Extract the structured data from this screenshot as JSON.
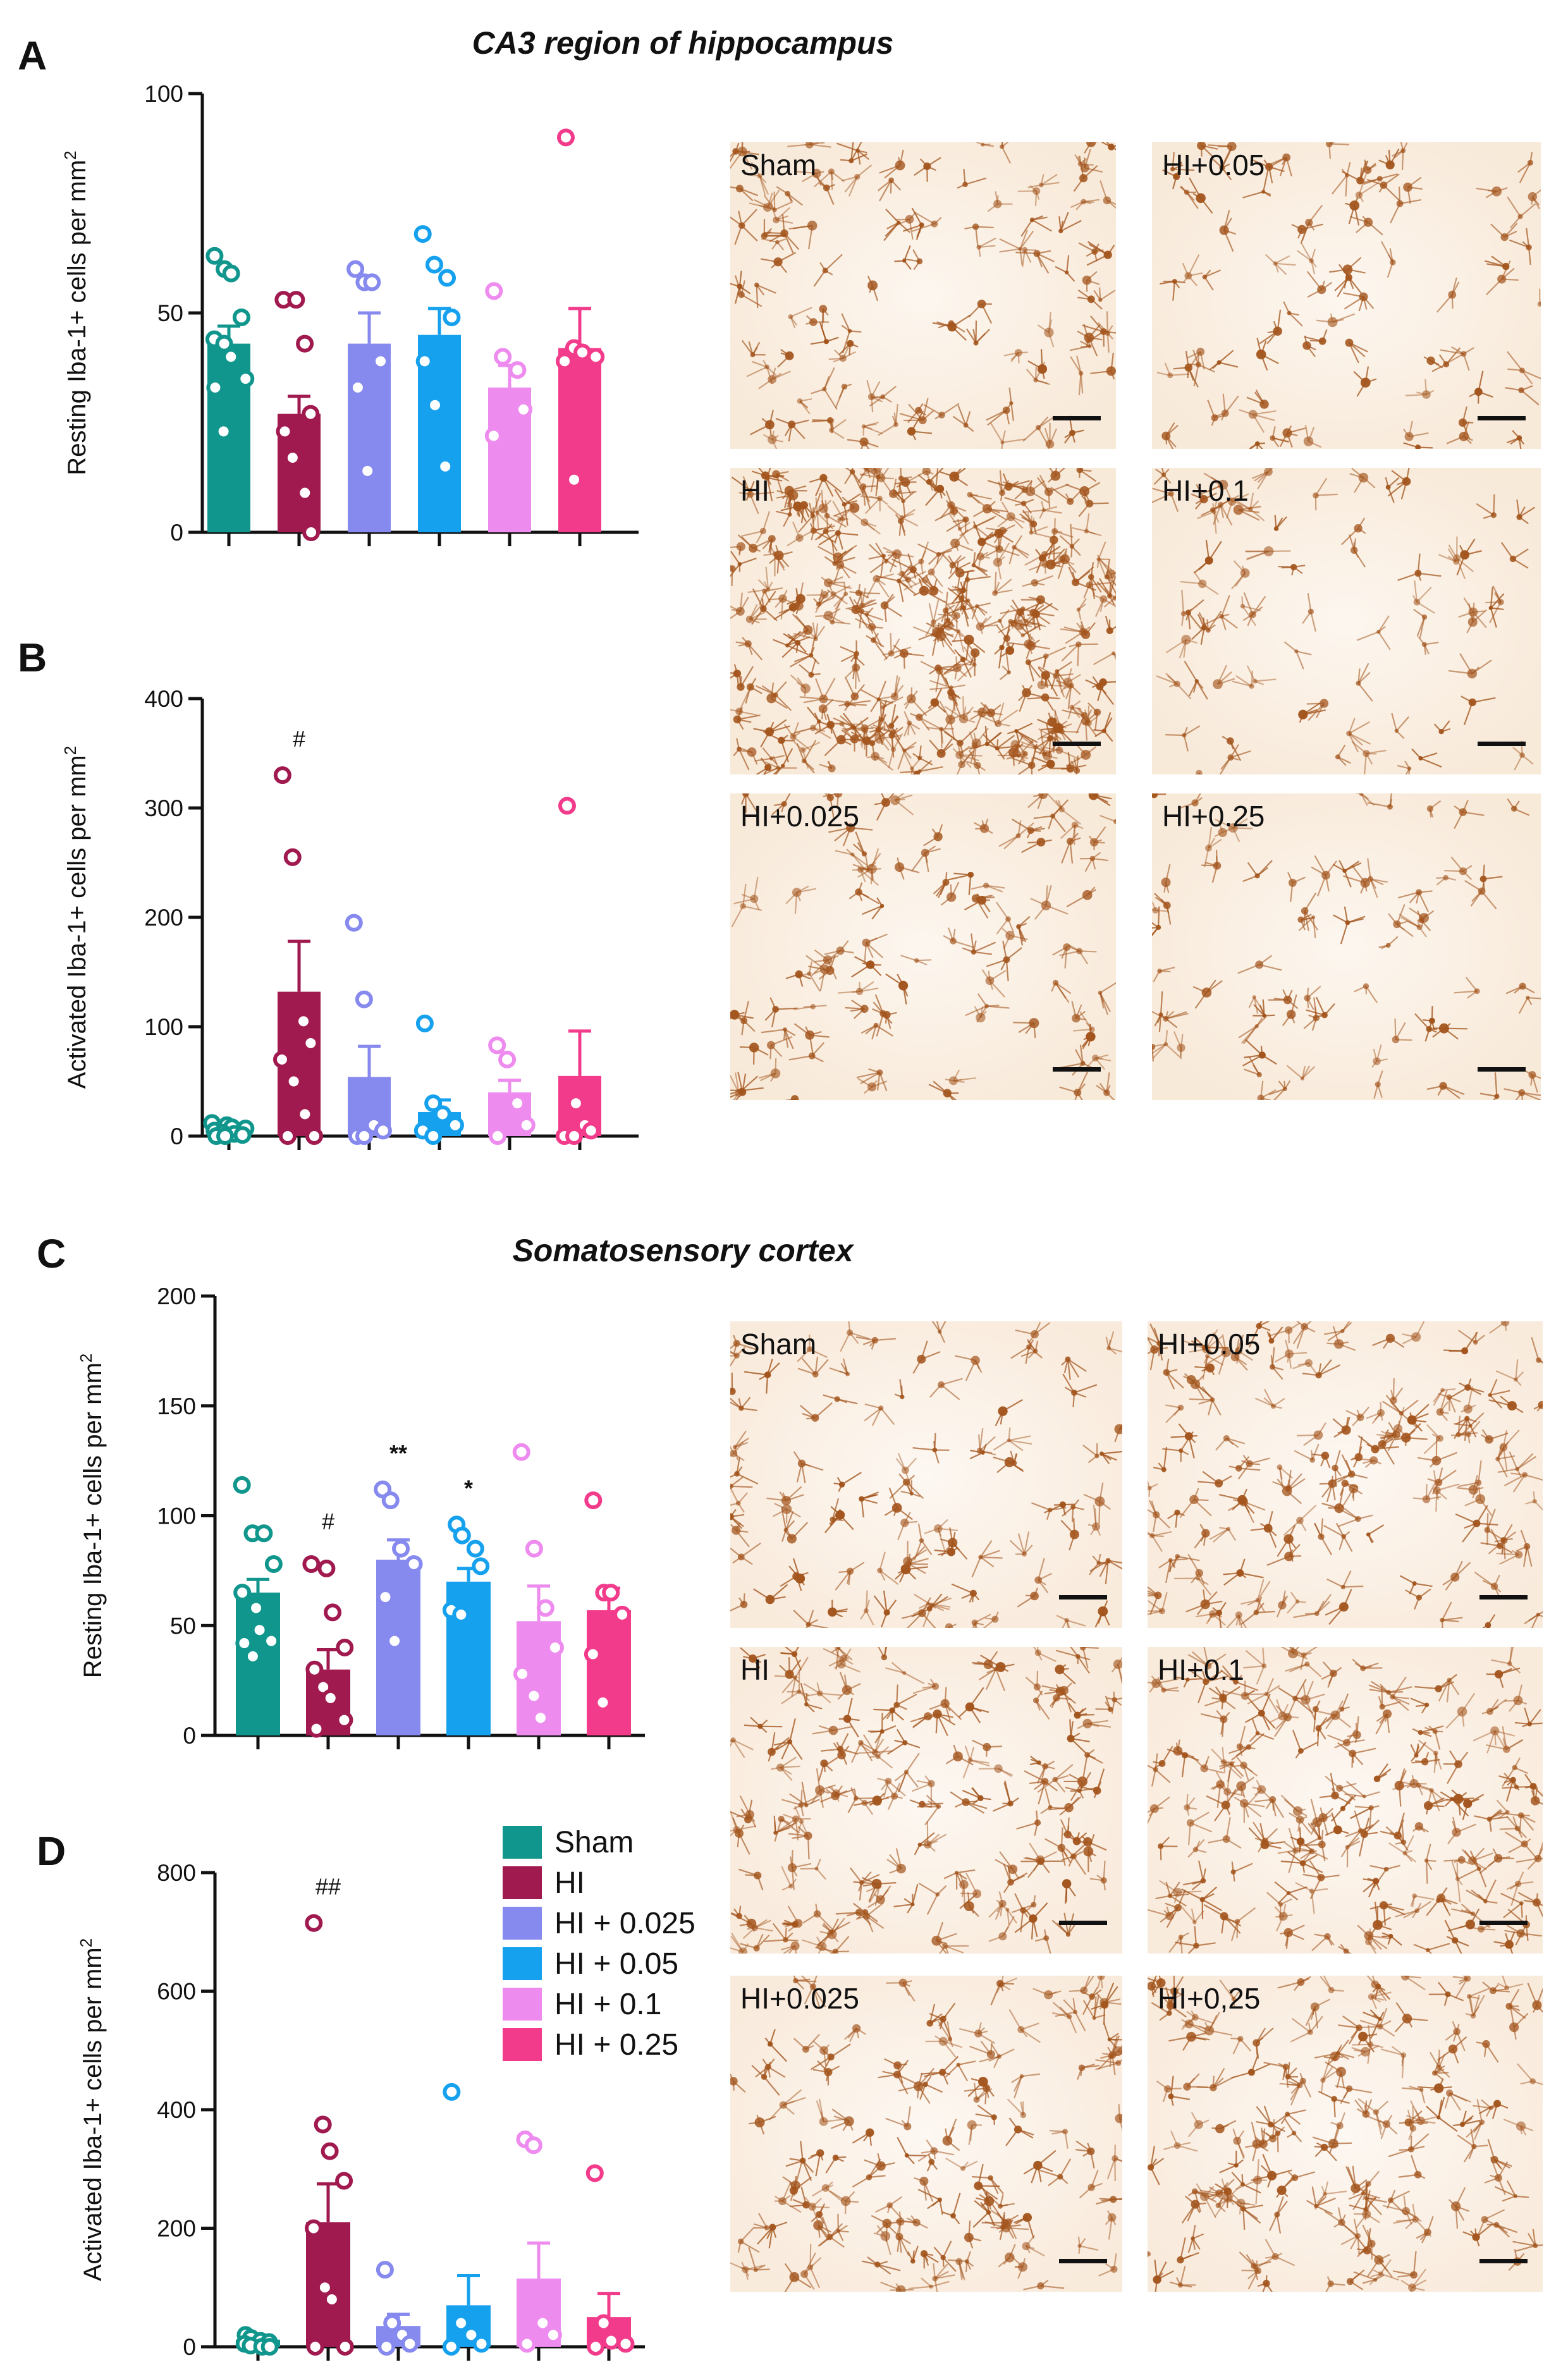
{
  "colors": {
    "Sham": "#10968c",
    "HI": "#a01a4f",
    "HI + 0.025": "#8689ee",
    "HI + 0.05": "#16a1ee",
    "HI + 0.1": "#ee8bef",
    "HI + 0.25": "#f23b8b",
    "bg_CA3": "#fbf1e5",
    "bg_cortex": "#fcf3ea",
    "stain": "#a3551d"
  },
  "sections": {
    "hippocampus": "CA3 region of hippocampus",
    "cortex": "Somatosensory cortex"
  },
  "legend": [
    "Sham",
    "HI",
    "HI + 0.025",
    "HI + 0.05",
    "HI + 0.1",
    "HI + 0.25"
  ],
  "micrographs": {
    "A": [
      "Sham",
      "HI+0.05",
      "HI",
      "HI+0.1",
      "HI+0.025",
      "HI+0.25"
    ],
    "C": [
      "Sham",
      "HI+0.05",
      "HI",
      "HI+0.1",
      "HI+0.025",
      "HI+0,25"
    ]
  },
  "chart_data": [
    {
      "panel": "A",
      "type": "bar",
      "ylabel": "Resting Iba-1+ cells per mm2",
      "ylim": [
        0,
        100
      ],
      "yticks": [
        0,
        50,
        100
      ],
      "categories": [
        "Sham",
        "HI",
        "HI + 0.025",
        "HI + 0.05",
        "HI + 0.1",
        "HI + 0.25"
      ],
      "values": [
        43,
        27,
        43,
        45,
        33,
        42
      ],
      "sem": [
        4,
        4,
        7,
        6,
        5,
        9
      ],
      "points": [
        [
          63,
          60,
          59,
          49,
          44,
          43,
          40,
          35,
          33,
          23
        ],
        [
          53,
          53,
          43,
          27,
          23,
          17,
          9,
          0
        ],
        [
          60,
          57,
          57,
          39,
          33,
          14
        ],
        [
          68,
          61,
          58,
          49,
          39,
          29,
          15
        ],
        [
          55,
          40,
          37,
          28,
          22
        ],
        [
          90,
          42,
          41,
          40,
          39,
          12
        ]
      ],
      "annotations": [
        "",
        "",
        "",
        "",
        "",
        ""
      ]
    },
    {
      "panel": "B",
      "type": "bar",
      "ylabel": "Activated Iba-1+ cells per mm2",
      "ylim": [
        0,
        400
      ],
      "yticks": [
        0,
        100,
        200,
        300,
        400
      ],
      "categories": [
        "Sham",
        "HI",
        "HI + 0.025",
        "HI + 0.05",
        "HI + 0.1",
        "HI + 0.25"
      ],
      "values": [
        7,
        132,
        54,
        22,
        40,
        55
      ],
      "sem": [
        2,
        46,
        28,
        11,
        11,
        41
      ],
      "points": [
        [
          12,
          10,
          8,
          7,
          5,
          3,
          2,
          1,
          0,
          0
        ],
        [
          330,
          255,
          105,
          85,
          70,
          50,
          20,
          0,
          0
        ],
        [
          195,
          125,
          10,
          5,
          0,
          0
        ],
        [
          103,
          30,
          20,
          10,
          5,
          0
        ],
        [
          83,
          70,
          30,
          10,
          0
        ],
        [
          302,
          30,
          10,
          5,
          0,
          0
        ]
      ],
      "annotations": [
        "",
        "#",
        "",
        "",
        "",
        ""
      ]
    },
    {
      "panel": "C",
      "type": "bar",
      "ylabel": "Resting Iba-1+ cells per mm2",
      "ylim": [
        0,
        200
      ],
      "yticks": [
        0,
        50,
        100,
        150,
        200
      ],
      "categories": [
        "Sham",
        "HI",
        "HI + 0.025",
        "HI + 0.05",
        "HI + 0.1",
        "HI + 0.25"
      ],
      "values": [
        65,
        30,
        80,
        70,
        52,
        57
      ],
      "sem": [
        6,
        9,
        9,
        6,
        16,
        10
      ],
      "points": [
        [
          114,
          92,
          92,
          78,
          65,
          58,
          48,
          43,
          42,
          36
        ],
        [
          78,
          76,
          56,
          40,
          30,
          22,
          17,
          7,
          3
        ],
        [
          112,
          107,
          85,
          78,
          63,
          43
        ],
        [
          96,
          91,
          85,
          77,
          57,
          55
        ],
        [
          129,
          85,
          58,
          40,
          28,
          18,
          8
        ],
        [
          107,
          65,
          65,
          55,
          37,
          15
        ]
      ],
      "annotations": [
        "",
        "#",
        "**",
        "*",
        "",
        ""
      ]
    },
    {
      "panel": "D",
      "type": "bar",
      "ylabel": "Activated Iba-1+ cells per mm2",
      "ylim": [
        0,
        800
      ],
      "yticks": [
        0,
        200,
        400,
        600,
        800
      ],
      "categories": [
        "Sham",
        "HI",
        "HI + 0.025",
        "HI + 0.05",
        "HI + 0.1",
        "HI + 0.25"
      ],
      "values": [
        12,
        210,
        35,
        70,
        115,
        50
      ],
      "sem": [
        3,
        65,
        20,
        50,
        60,
        40
      ],
      "points": [
        [
          20,
          15,
          10,
          8,
          5,
          2,
          0,
          0
        ],
        [
          715,
          375,
          330,
          280,
          200,
          100,
          80,
          0,
          0
        ],
        [
          130,
          40,
          20,
          5,
          0
        ],
        [
          430,
          40,
          20,
          5,
          0
        ],
        [
          350,
          340,
          40,
          20,
          5
        ],
        [
          293,
          40,
          10,
          5,
          0
        ]
      ],
      "annotations": [
        "",
        "##",
        "",
        "",
        "",
        ""
      ]
    }
  ]
}
